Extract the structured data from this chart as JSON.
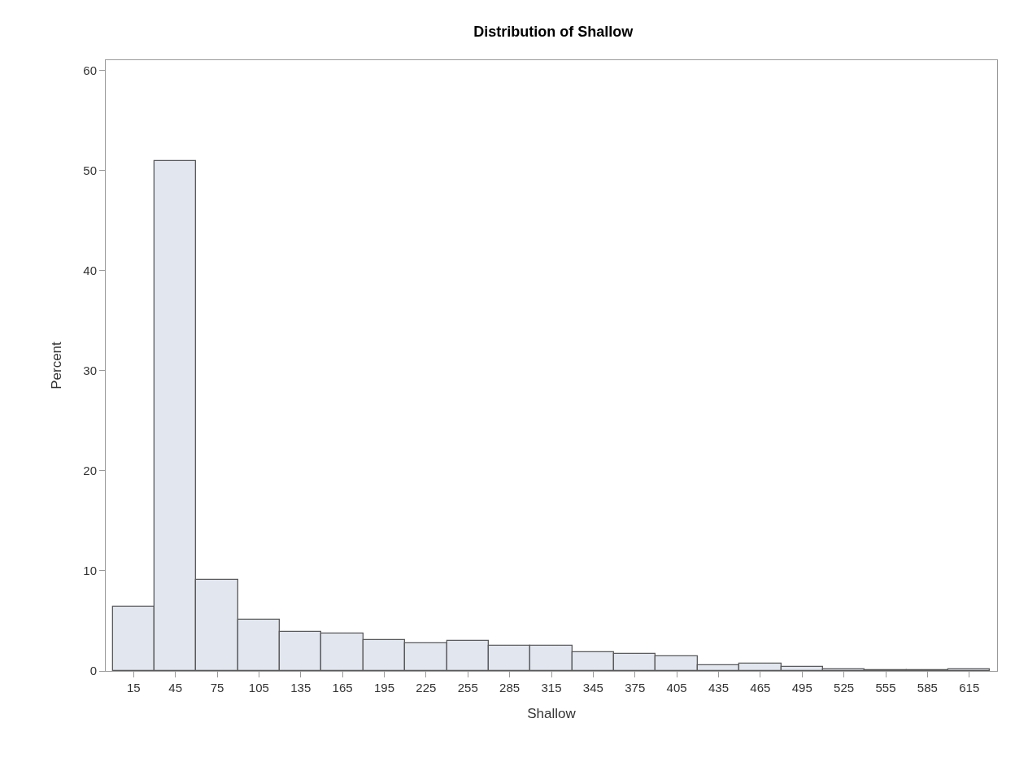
{
  "chart_data": {
    "type": "histogram",
    "title": "Distribution of Shallow",
    "xlabel": "Shallow",
    "ylabel": "Percent",
    "bins": [
      0,
      30,
      60,
      90,
      120,
      150,
      180,
      210,
      240,
      270,
      300,
      330,
      360,
      390,
      420,
      450,
      480,
      510,
      540,
      570,
      600,
      630
    ],
    "values": [
      6.4,
      50.9,
      9.1,
      5.1,
      3.9,
      3.7,
      3.1,
      2.8,
      3.0,
      2.5,
      2.5,
      1.9,
      1.7,
      1.5,
      0.6,
      0.7,
      0.4,
      0.2,
      0.1,
      0.1,
      0.2
    ],
    "color": "#e1e6ef",
    "xlim": [
      -5,
      635
    ],
    "xticks": [
      15,
      45,
      75,
      105,
      135,
      165,
      195,
      225,
      255,
      285,
      315,
      345,
      375,
      405,
      435,
      465,
      495,
      525,
      555,
      585,
      615
    ],
    "ylim": [
      0,
      61
    ],
    "yticks": [
      0,
      10,
      20,
      30,
      40,
      50,
      60
    ],
    "grid": false,
    "legend": false
  }
}
